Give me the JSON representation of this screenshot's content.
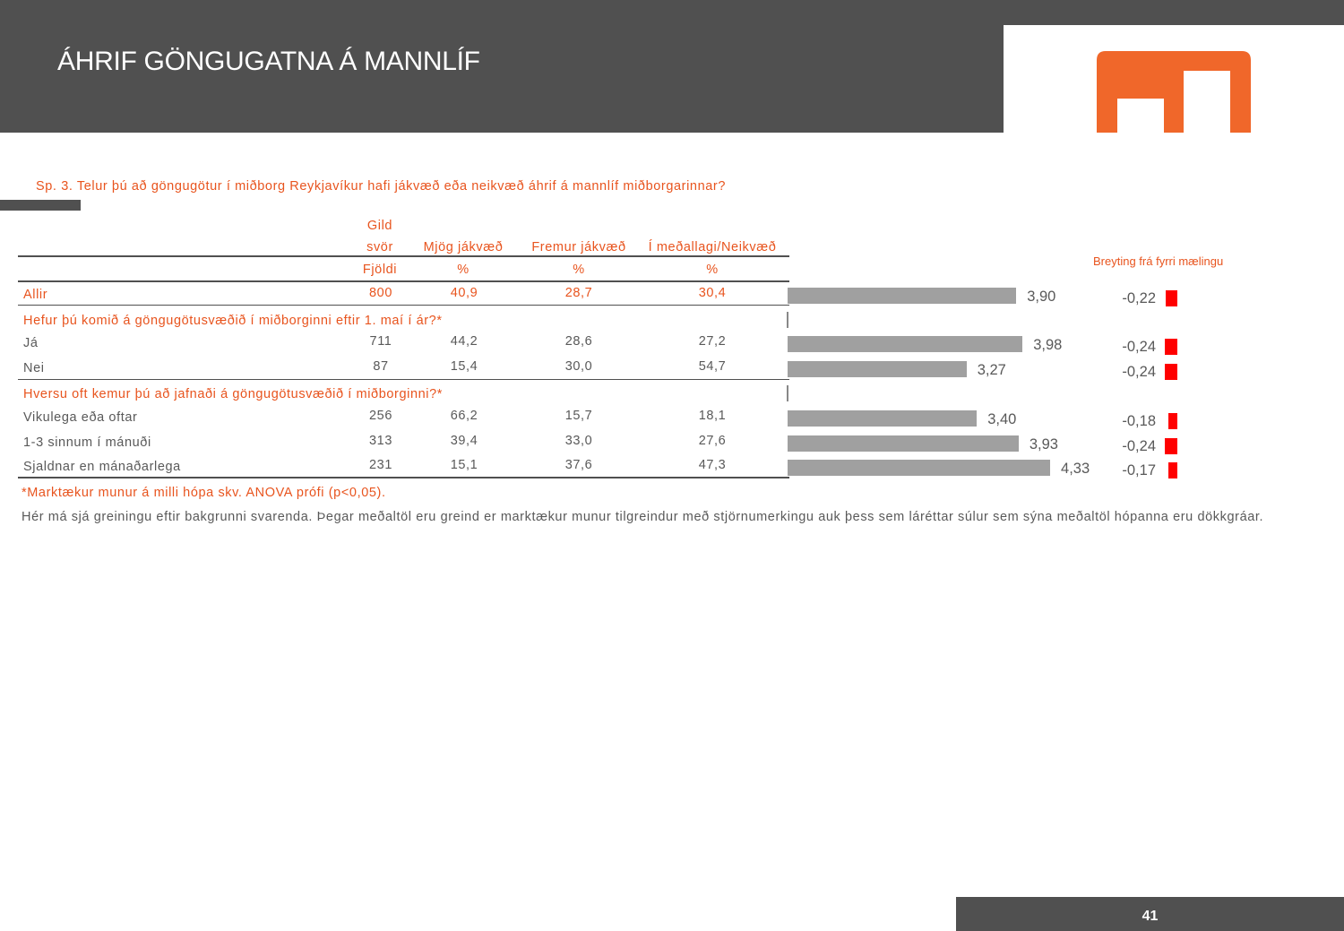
{
  "header": {
    "title": "ÁHRIF GÖNGUGATNA Á MANNLÍF"
  },
  "question": "Sp. 3. Telur þú að göngugötur í miðborg Reykjavíkur hafi jákvæð eða neikvæð áhrif á mannlíf miðborgarinnar?",
  "table": {
    "headers": {
      "gild": "Gild",
      "svor": "svör",
      "mjog": "Mjög jákvæð",
      "fremur": "Fremur jákvæð",
      "medal": "Í meðallagi/Neikvæð",
      "fjoldi": "Fjöldi",
      "pct1": "%",
      "pct2": "%",
      "pct3": "%"
    },
    "change_header": "Breyting frá fyrri mælingu",
    "sections": [
      "Hefur þú komið á göngugötusvæðið í miðborginni eftir 1. maí í ár?*",
      "Hversu oft kemur þú að jafnaði á göngugötusvæðið í miðborginni?*"
    ],
    "rows": [
      {
        "label": "Allir",
        "n": "800",
        "mjog": "40,9",
        "fremur": "28,7",
        "medal": "30,4",
        "mean": 3.9,
        "mean_label": "3,90",
        "change": -0.22,
        "change_label": "-0,22"
      },
      {
        "label": "Já",
        "n": "711",
        "mjog": "44,2",
        "fremur": "28,6",
        "medal": "27,2",
        "mean": 3.98,
        "mean_label": "3,98",
        "change": -0.24,
        "change_label": "-0,24"
      },
      {
        "label": "Nei",
        "n": "87",
        "mjog": "15,4",
        "fremur": "30,0",
        "medal": "54,7",
        "mean": 3.27,
        "mean_label": "3,27",
        "change": -0.24,
        "change_label": "-0,24"
      },
      {
        "label": "Vikulega eða oftar",
        "n": "256",
        "mjog": "66,2",
        "fremur": "15,7",
        "medal": "18,1",
        "mean": 3.4,
        "mean_label": "3,40",
        "change": -0.18,
        "change_label": "-0,18"
      },
      {
        "label": "1-3 sinnum í mánuði",
        "n": "313",
        "mjog": "39,4",
        "fremur": "33,0",
        "medal": "27,6",
        "mean": 3.93,
        "mean_label": "3,93",
        "change": -0.24,
        "change_label": "-0,24"
      },
      {
        "label": "Sjaldnar en mánaðarlega",
        "n": "231",
        "mjog": "15,1",
        "fremur": "37,6",
        "medal": "47,3",
        "mean": 4.33,
        "mean_label": "4,33",
        "change": -0.17,
        "change_label": "-0,17"
      }
    ]
  },
  "footnote": "*Marktækur munur á milli hópa skv. ANOVA prófi (p<0,05).",
  "description": "Hér má sjá greiningu eftir bakgrunni svarenda. Þegar meðaltöl eru greind er marktækur munur tilgreindur með stjörnumerkingu auk þess sem láréttar súlur sem sýna meðaltöl hópanna eru dökkgráar.",
  "page_number": "41",
  "colors": {
    "accent": "#e8541e",
    "bar": "#a0a0a0",
    "change": "#ff0000",
    "dark": "#505050"
  }
}
